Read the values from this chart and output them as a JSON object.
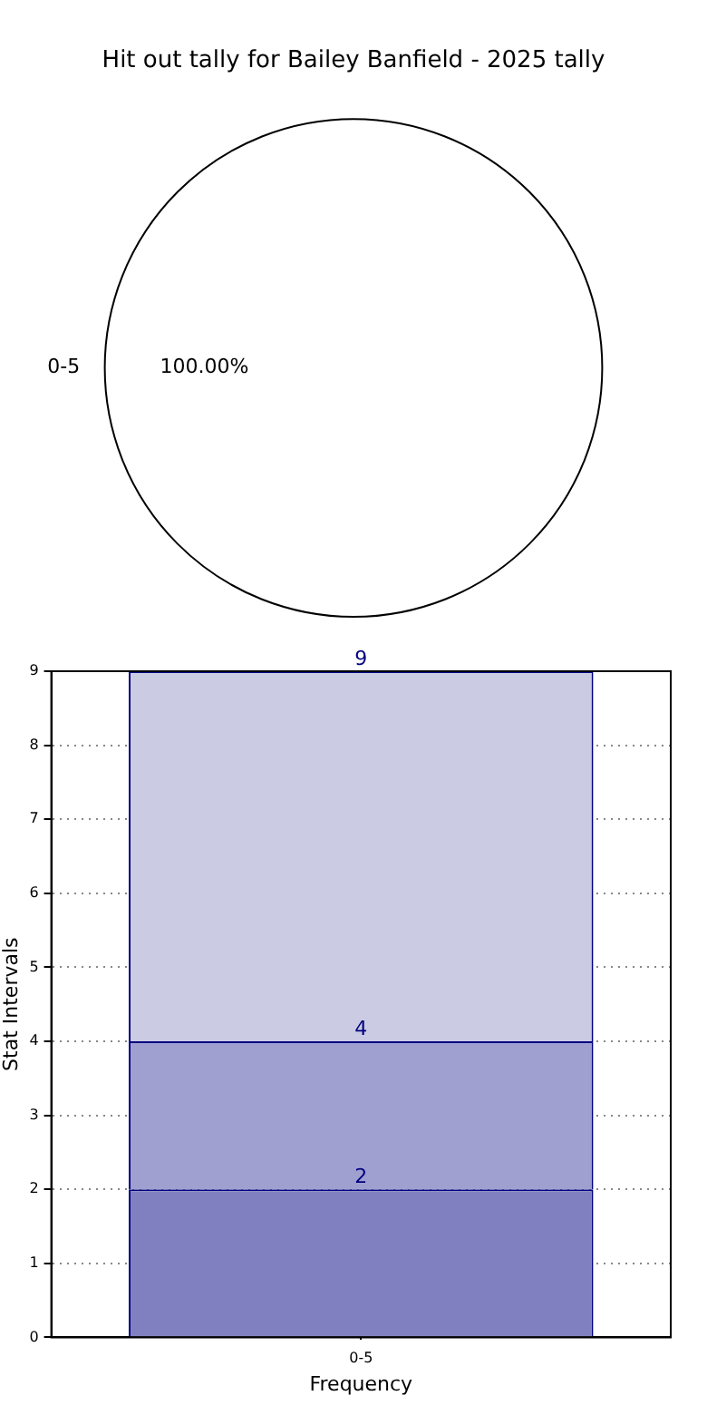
{
  "chart_data": [
    {
      "type": "pie",
      "title": "Hit out tally for Bailey Banfield - 2025 tally",
      "categories": [
        "0-5"
      ],
      "values": [
        100
      ],
      "colors": [
        "#ffffff"
      ],
      "value_labels": [
        "100.00%"
      ]
    },
    {
      "type": "bar",
      "stacked": true,
      "categories": [
        "0-5"
      ],
      "xlabel": "Frequency",
      "ylabel": "Stat Intervals",
      "ylim": [
        0,
        9
      ],
      "yticks": [
        0,
        1,
        2,
        3,
        4,
        5,
        6,
        7,
        8,
        9
      ],
      "grid": true,
      "line_style": "dotted",
      "series": [
        {
          "color": "#8080c0",
          "values": [
            2
          ]
        },
        {
          "color": "#a0a0d0",
          "values": [
            2
          ]
        },
        {
          "color": "#cbcbe3",
          "values": [
            5
          ]
        }
      ],
      "totals": [
        "9"
      ],
      "annotations": [
        {
          "text": "2",
          "x": "0-5",
          "y": 2
        },
        {
          "text": "4",
          "x": "0-5",
          "y": 4
        }
      ]
    }
  ]
}
